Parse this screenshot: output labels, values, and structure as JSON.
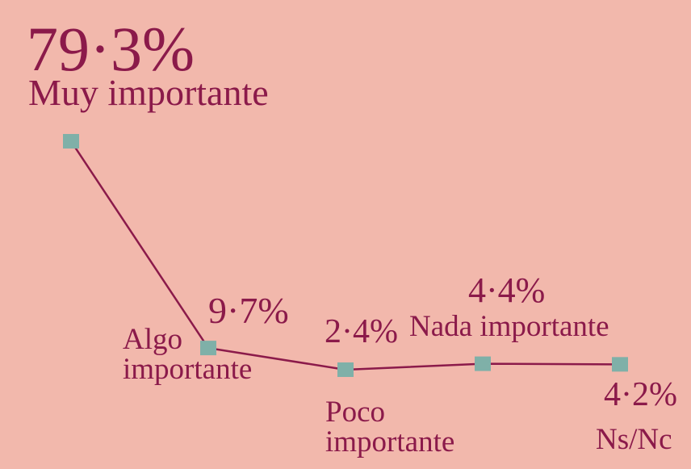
{
  "chart_data": {
    "type": "line",
    "categories": [
      "Muy importante",
      "Algo importante",
      "Poco importante",
      "Nada importante",
      "Ns/Nc"
    ],
    "values": [
      79.3,
      9.7,
      2.4,
      4.4,
      4.2
    ],
    "value_labels": [
      "79·3%",
      "9·7%",
      "2·4%",
      "4·4%",
      "4·2%"
    ],
    "color": "#8b1a4a",
    "marker_color": "#7fb0a8",
    "ylim": [
      0,
      100
    ]
  }
}
